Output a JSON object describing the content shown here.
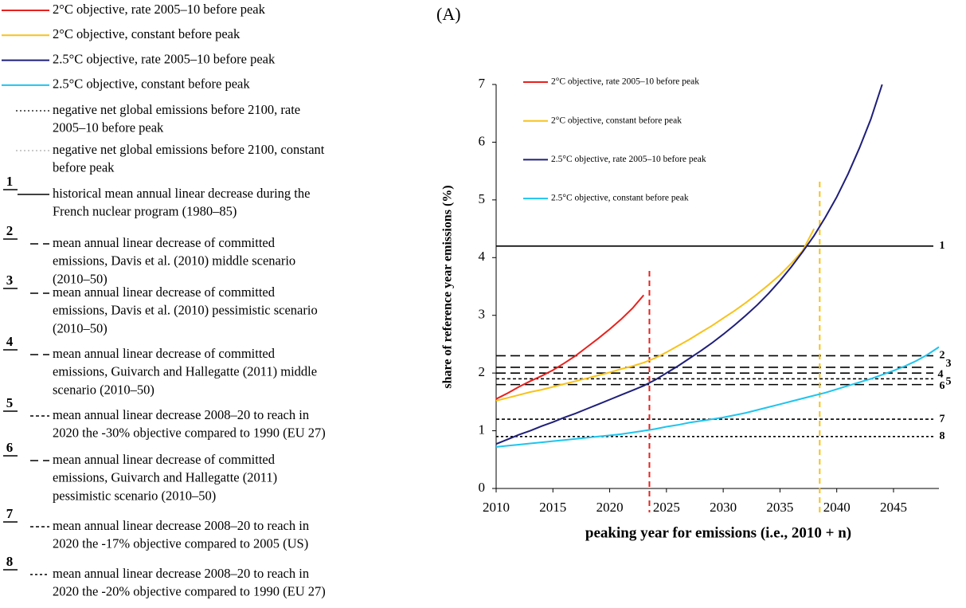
{
  "panel_label": "(A)",
  "legend_panel": [
    {
      "lines": [
        "negative net global emissions before 2100, rate",
        "2005–10 before peak"
      ],
      "dash": "2,3",
      "color": "#000"
    },
    {
      "lines": [
        "negative net global emissions before 2100, constant",
        "before peak"
      ],
      "dash": "2,3",
      "color": "#aaa"
    },
    {
      "number": "1",
      "lines": [
        "historical mean annual linear decrease during the",
        "French nuclear program (1980–85)"
      ],
      "dash": "none",
      "color": "#000"
    },
    {
      "number": "2",
      "lines": [
        "mean annual linear decrease of committed",
        "emissions, Davis et al. (2010) middle scenario",
        "(2010–50)"
      ],
      "dash": "10,6",
      "color": "#000"
    },
    {
      "number": "3",
      "lines": [
        "mean annual linear decrease of committed",
        "emissions, Davis et al. (2010) pessimistic scenario",
        "(2010–50)"
      ],
      "dash": "10,6",
      "color": "#000"
    },
    {
      "number": "4",
      "lines": [
        "mean annual linear decrease of committed",
        "emissions, Guivarch and Hallegatte (2011) middle",
        "scenario (2010–50)"
      ],
      "dash": "10,6",
      "color": "#000"
    },
    {
      "number": "5",
      "lines": [
        "mean annual linear decrease 2008–20 to reach in",
        "2020 the -30% objective compared to 1990 (EU 27)"
      ],
      "dash": "4,3",
      "color": "#000"
    },
    {
      "number": "6",
      "lines": [
        "mean annual linear decrease of committed",
        "emissions, Guivarch and Hallegatte (2011)",
        "pessimistic scenario (2010–50)"
      ],
      "dash": "10,6",
      "color": "#000"
    },
    {
      "number": "7",
      "lines": [
        "mean annual linear decrease 2008–20 to reach in",
        "2020 the -17% objective compared to 2005 (US)"
      ],
      "dash": "4,3",
      "color": "#000"
    },
    {
      "number": "8",
      "lines": [
        "mean annual linear decrease 2008–20 to reach in",
        "2020 the -20% objective compared to 1990 (EU 27)"
      ],
      "dash": "3,3",
      "color": "#000"
    }
  ],
  "chart_data": {
    "type": "line",
    "x_label": "peaking year for emissions (i.e., 2010 + n)",
    "y_label": "share of reference year emissions (%)",
    "x": [
      2010,
      2011,
      2012,
      2013,
      2014,
      2015,
      2016,
      2017,
      2018,
      2019,
      2020,
      2021,
      2022,
      2023,
      2024,
      2025,
      2026,
      2027,
      2028,
      2029,
      2030,
      2031,
      2032,
      2033,
      2034,
      2035,
      2036,
      2037,
      2038,
      2039,
      2040,
      2041,
      2042,
      2043,
      2044,
      2045,
      2046,
      2047,
      2048,
      2049
    ],
    "xlim": [
      2010,
      2049
    ],
    "xticks": [
      2010,
      2015,
      2020,
      2025,
      2030,
      2035,
      2040,
      2045
    ],
    "ylim": [
      0,
      7
    ],
    "yticks": [
      0,
      1,
      2,
      3,
      4,
      5,
      6,
      7
    ],
    "series": [
      {
        "name": "2°C objective, rate 2005–10 before peak",
        "color": "#e8211d",
        "values": [
          1.55,
          1.65,
          1.76,
          1.86,
          1.95,
          2.05,
          2.17,
          2.3,
          2.45,
          2.6,
          2.76,
          2.93,
          3.12,
          3.35,
          null,
          null,
          null,
          null,
          null,
          null,
          null,
          null,
          null,
          null,
          null,
          null,
          null,
          null,
          null,
          null,
          null,
          null,
          null,
          null,
          null,
          null,
          null,
          null,
          null,
          null
        ]
      },
      {
        "name": "2°C objective, constant before peak",
        "color": "#f8c21b",
        "values": [
          1.52,
          1.57,
          1.62,
          1.67,
          1.71,
          1.76,
          1.81,
          1.86,
          1.91,
          1.96,
          2.01,
          2.07,
          2.12,
          2.18,
          2.26,
          2.36,
          2.47,
          2.58,
          2.7,
          2.82,
          2.95,
          3.08,
          3.22,
          3.37,
          3.53,
          3.7,
          3.9,
          4.12,
          4.5,
          null,
          null,
          null,
          null,
          null,
          null,
          null,
          null,
          null,
          null,
          null
        ]
      },
      {
        "name": "2.5°C objective, rate 2005–10 before peak",
        "color": "#1f1f7a",
        "values": [
          0.77,
          0.85,
          0.93,
          1.0,
          1.08,
          1.15,
          1.23,
          1.3,
          1.38,
          1.46,
          1.54,
          1.62,
          1.7,
          1.78,
          1.88,
          2.0,
          2.12,
          2.25,
          2.38,
          2.52,
          2.67,
          2.83,
          3.0,
          3.18,
          3.38,
          3.6,
          3.84,
          4.1,
          4.38,
          4.7,
          5.05,
          5.45,
          5.9,
          6.4,
          7.0,
          null,
          null,
          null,
          null,
          null
        ]
      },
      {
        "name": "2.5°C objective, constant before peak",
        "color": "#1fc4ee",
        "values": [
          0.72,
          0.74,
          0.76,
          0.78,
          0.8,
          0.82,
          0.84,
          0.86,
          0.88,
          0.9,
          0.92,
          0.94,
          0.97,
          1.0,
          1.03,
          1.07,
          1.1,
          1.14,
          1.17,
          1.2,
          1.23,
          1.27,
          1.31,
          1.36,
          1.41,
          1.46,
          1.51,
          1.56,
          1.61,
          1.66,
          1.72,
          1.78,
          1.84,
          1.9,
          1.97,
          2.04,
          2.12,
          2.21,
          2.32,
          2.45
        ]
      }
    ],
    "hlines": [
      {
        "value": 4.2,
        "label": "1",
        "dash": "none"
      },
      {
        "value": 2.3,
        "label": "2",
        "dash": "12,6"
      },
      {
        "value": 2.1,
        "label": "3",
        "dash": "12,6"
      },
      {
        "value": 2.0,
        "label": "4",
        "dash": "12,6"
      },
      {
        "value": 1.9,
        "label": "5",
        "dash": "4,3"
      },
      {
        "value": 1.8,
        "label": "6",
        "dash": "12,6"
      },
      {
        "value": 1.2,
        "label": "7",
        "dash": "4,3"
      },
      {
        "value": 0.9,
        "label": "8",
        "dash": "3,3"
      }
    ],
    "vlines": [
      {
        "x": 2023.5,
        "color": "#e8211d"
      },
      {
        "x": 2038.5,
        "color": "#f8c21b"
      }
    ]
  }
}
